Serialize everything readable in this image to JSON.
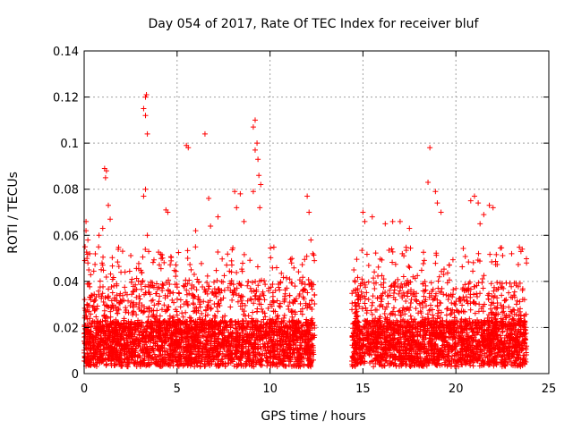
{
  "chart_data": {
    "type": "scatter",
    "title": "Day 054 of 2017, Rate Of TEC Index for receiver bluf",
    "xlabel": "GPS time / hours",
    "ylabel": "ROTI / TECUs",
    "xlim": [
      0,
      25
    ],
    "ylim": [
      0,
      0.14
    ],
    "xticks": [
      "0",
      "5",
      "10",
      "15",
      "20",
      "25"
    ],
    "yticks": [
      "0",
      "0.02",
      "0.04",
      "0.06",
      "0.08",
      "0.1",
      "0.12",
      "0.14"
    ],
    "grid": true,
    "marker": "+",
    "color": "#ff0000",
    "series": [
      {
        "points": [
          [
            0.05,
            0.055
          ],
          [
            0.1,
            0.062
          ],
          [
            0.15,
            0.05
          ],
          [
            0.2,
            0.058
          ],
          [
            0.25,
            0.045
          ],
          [
            0.3,
            0.052
          ],
          [
            0.1,
            0.066
          ],
          [
            0.2,
            0.048
          ],
          [
            1.1,
            0.089
          ],
          [
            1.15,
            0.085
          ],
          [
            1.2,
            0.088
          ],
          [
            1.3,
            0.073
          ],
          [
            0.8,
            0.06
          ],
          [
            1.0,
            0.063
          ],
          [
            1.4,
            0.067
          ],
          [
            3.2,
            0.115
          ],
          [
            3.3,
            0.12
          ],
          [
            3.35,
            0.121
          ],
          [
            3.3,
            0.112
          ],
          [
            3.4,
            0.104
          ],
          [
            3.3,
            0.08
          ],
          [
            3.2,
            0.077
          ],
          [
            3.4,
            0.06
          ],
          [
            4.4,
            0.071
          ],
          [
            4.5,
            0.07
          ],
          [
            5.5,
            0.099
          ],
          [
            5.6,
            0.098
          ],
          [
            6.5,
            0.104
          ],
          [
            6.0,
            0.062
          ],
          [
            6.8,
            0.064
          ],
          [
            7.2,
            0.068
          ],
          [
            6.7,
            0.076
          ],
          [
            8.1,
            0.079
          ],
          [
            8.2,
            0.072
          ],
          [
            8.4,
            0.078
          ],
          [
            8.6,
            0.066
          ],
          [
            9.1,
            0.107
          ],
          [
            9.2,
            0.11
          ],
          [
            9.3,
            0.1
          ],
          [
            9.2,
            0.097
          ],
          [
            9.35,
            0.093
          ],
          [
            9.4,
            0.086
          ],
          [
            9.5,
            0.082
          ],
          [
            9.45,
            0.072
          ],
          [
            9.1,
            0.079
          ],
          [
            12.0,
            0.077
          ],
          [
            12.1,
            0.07
          ],
          [
            12.2,
            0.058
          ],
          [
            12.3,
            0.052
          ],
          [
            15.0,
            0.07
          ],
          [
            15.1,
            0.066
          ],
          [
            15.5,
            0.068
          ],
          [
            16.2,
            0.065
          ],
          [
            16.6,
            0.066
          ],
          [
            17.0,
            0.066
          ],
          [
            17.5,
            0.063
          ],
          [
            18.6,
            0.098
          ],
          [
            18.5,
            0.083
          ],
          [
            18.9,
            0.079
          ],
          [
            19.0,
            0.074
          ],
          [
            19.2,
            0.07
          ],
          [
            20.8,
            0.075
          ],
          [
            21.0,
            0.077
          ],
          [
            21.2,
            0.074
          ],
          [
            21.5,
            0.069
          ],
          [
            21.8,
            0.073
          ],
          [
            22.0,
            0.072
          ],
          [
            21.3,
            0.065
          ],
          [
            23.0,
            0.052
          ],
          [
            23.5,
            0.053
          ],
          [
            23.8,
            0.048
          ]
        ]
      }
    ]
  }
}
